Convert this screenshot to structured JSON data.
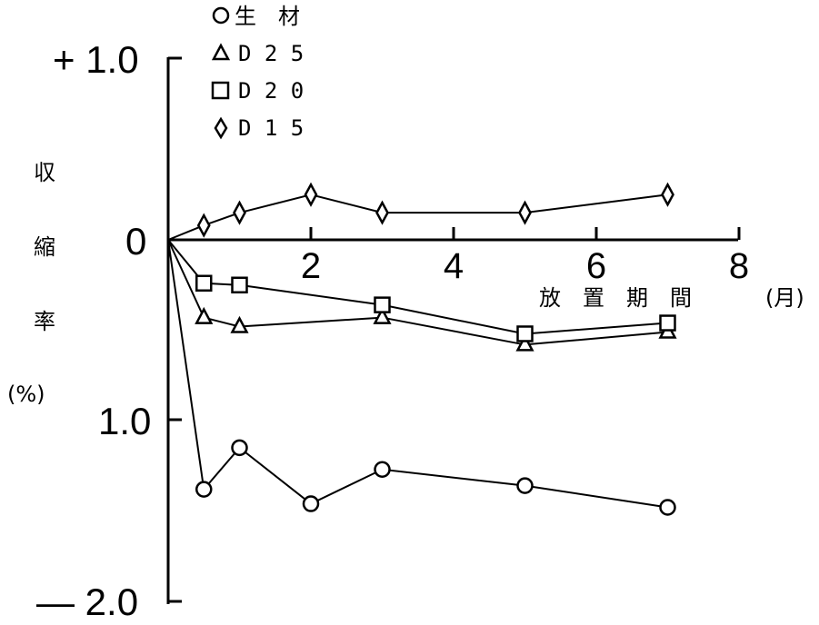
{
  "chart_data": {
    "type": "line",
    "title": "",
    "xlabel": "放　置　期　間",
    "xunit": "(月)",
    "ylabel_chars": [
      "収",
      "縮",
      "率",
      "(%)"
    ],
    "xlim": [
      0,
      8
    ],
    "ylim": [
      -2.0,
      1.0
    ],
    "x_ticks": [
      0,
      2,
      4,
      6,
      8
    ],
    "x_tick_labels": [
      "2",
      "4",
      "6",
      "8"
    ],
    "y_tick_labels": {
      "top": "+ 1.0",
      "zero": "0",
      "minus1": "1.0",
      "bottom": "— 2.0"
    },
    "legend_position": "top-left",
    "series": [
      {
        "name": "生　材",
        "marker": "circle",
        "x": [
          0,
          0.5,
          1,
          2,
          3,
          5,
          7
        ],
        "y": [
          0,
          -1.38,
          -1.15,
          -1.46,
          -1.27,
          -1.36,
          -1.48
        ]
      },
      {
        "name": "D25",
        "marker": "triangle",
        "x": [
          0,
          0.5,
          1,
          3,
          5,
          7
        ],
        "y": [
          0,
          -0.43,
          -0.48,
          -0.43,
          -0.58,
          -0.51
        ]
      },
      {
        "name": "D20",
        "marker": "square",
        "x": [
          0,
          0.5,
          1,
          3,
          5,
          7
        ],
        "y": [
          0,
          -0.24,
          -0.25,
          -0.36,
          -0.52,
          -0.46
        ]
      },
      {
        "name": "D15",
        "marker": "diamond",
        "x": [
          0,
          0.5,
          1,
          2,
          3,
          5,
          7
        ],
        "y": [
          0,
          0.08,
          0.15,
          0.25,
          0.15,
          0.15,
          0.25
        ]
      }
    ],
    "legend_labels": [
      "生　材",
      "D 2 5",
      "D 2 0",
      "D 1 5"
    ]
  }
}
